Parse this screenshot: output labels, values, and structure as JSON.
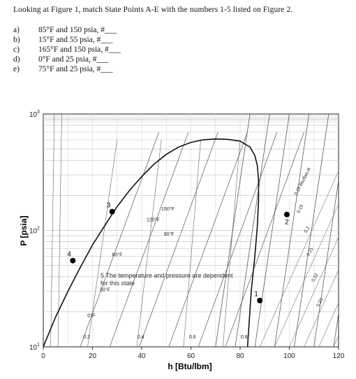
{
  "question": "Looking at Figure 1, match State Points A-E with the numbers 1-5 listed on Figure 2.",
  "items": [
    {
      "label": "a)",
      "text": "85°F and 150 psia, #___"
    },
    {
      "label": "b)",
      "text": "15°F and 55 psia, #___"
    },
    {
      "label": "c)",
      "text": "165°F and 150 psia, #___"
    },
    {
      "label": "d)",
      "text": "0°F and 25 psia, #___"
    },
    {
      "label": "e)",
      "text": "75°F and 25 psia, #___"
    }
  ],
  "chart_data": {
    "type": "scatter",
    "xlabel": "h [Btu/lbm]",
    "ylabel": "P [psia]",
    "xlim": [
      0,
      120
    ],
    "ylim": [
      10,
      1000
    ],
    "y_scale": "log",
    "x_ticks": [
      "0",
      "20",
      "40",
      "60",
      "80",
      "100",
      "120"
    ],
    "y_ticks": [
      {
        "base": "10",
        "exp": "1"
      },
      {
        "base": "10",
        "exp": "2"
      },
      {
        "base": "10",
        "exp": "3"
      }
    ],
    "points": [
      {
        "label": "1",
        "x": 88,
        "y": 25
      },
      {
        "label": "2",
        "x": 99,
        "y": 137
      },
      {
        "label": "3",
        "x": 28,
        "y": 145
      },
      {
        "label": "4",
        "x": 12,
        "y": 55
      },
      {
        "label": "5",
        "x": 31,
        "y": 35
      }
    ],
    "isotherm_labels": [
      "150°F",
      "120°F",
      "90°F",
      "60°F",
      "30°F",
      "0°F"
    ],
    "quality_labels": [
      "0.2",
      "0.4",
      "0.6",
      "0.8"
    ],
    "entropy_labels": [
      "0.18 Btu/lbm-R",
      "0.19",
      "0.2",
      "0.21",
      "0.22",
      "0.23"
    ],
    "annotation": "5 The temperature and pressure are dependent for this state"
  }
}
